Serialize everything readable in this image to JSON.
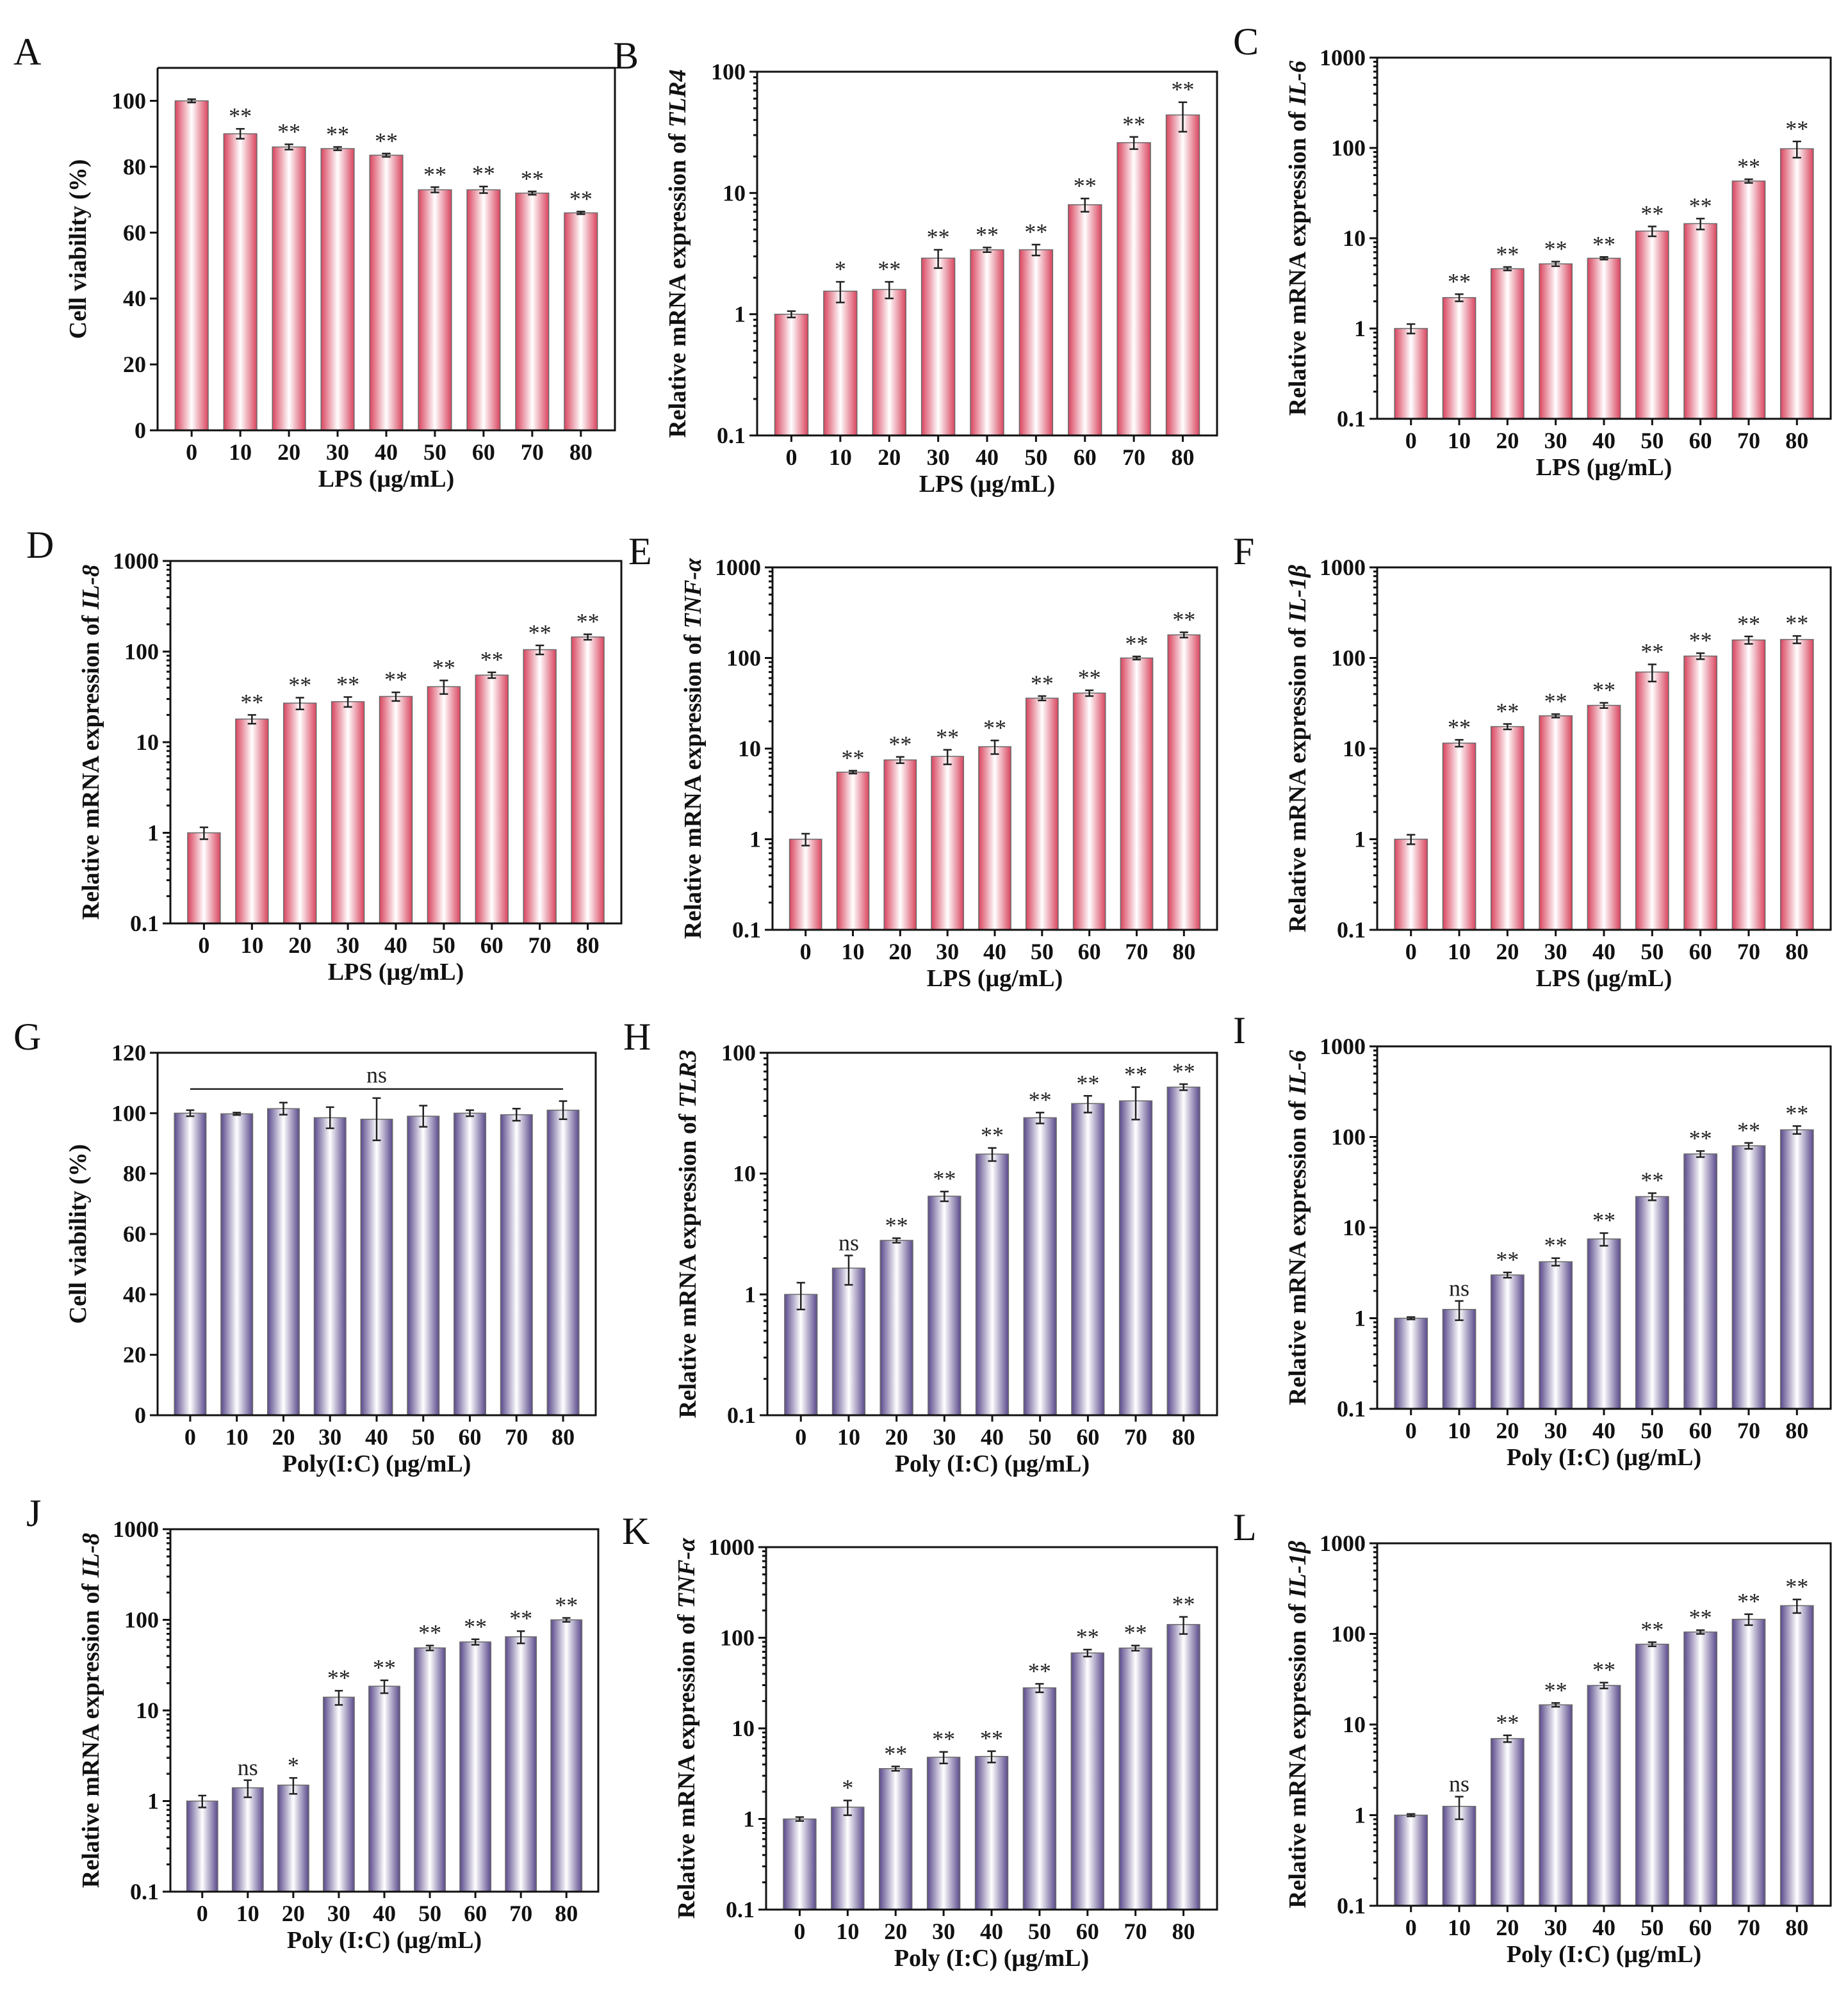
{
  "figure": {
    "colors": {
      "lps_bar": "#d9455f",
      "polyic_bar": "#5b4a8c",
      "bar_light": "#ffffff"
    }
  },
  "chart_data": [
    {
      "panel": "A",
      "type": "bar",
      "yscale": "linear",
      "ylim": [
        0,
        110
      ],
      "yticks": [
        0,
        20,
        40,
        60,
        80,
        100
      ],
      "color_key": "lps_bar",
      "xlabel": "LPS (μg/mL)",
      "ylabel": [
        {
          "t": "Cell viability (%)",
          "i": false
        }
      ],
      "categories": [
        "0",
        "10",
        "20",
        "30",
        "40",
        "50",
        "60",
        "70",
        "80"
      ],
      "values": [
        100,
        90,
        86,
        85.5,
        83.5,
        73,
        73,
        72,
        66
      ],
      "errors": [
        0.5,
        1.5,
        0.8,
        0.5,
        0.5,
        0.8,
        1,
        0.5,
        0.4
      ],
      "sig": [
        "",
        "**",
        "**",
        "**",
        "**",
        "**",
        "**",
        "**",
        "**"
      ]
    },
    {
      "panel": "B",
      "type": "bar",
      "yscale": "log",
      "ylim": [
        0.1,
        100
      ],
      "yticks": [
        0.1,
        1,
        10,
        100
      ],
      "color_key": "lps_bar",
      "xlabel": "LPS (μg/mL)",
      "ylabel": [
        {
          "t": "Relative mRNA expression of ",
          "i": false
        },
        {
          "t": "TLR4",
          "i": true
        }
      ],
      "categories": [
        "0",
        "10",
        "20",
        "30",
        "40",
        "50",
        "60",
        "70",
        "80"
      ],
      "values": [
        1,
        1.55,
        1.6,
        2.9,
        3.4,
        3.4,
        8,
        26,
        44
      ],
      "errors": [
        0.06,
        0.3,
        0.25,
        0.5,
        0.15,
        0.35,
        1,
        3,
        12
      ],
      "sig": [
        "",
        "*",
        "**",
        "**",
        "**",
        "**",
        "**",
        "**",
        "**"
      ]
    },
    {
      "panel": "C",
      "type": "bar",
      "yscale": "log",
      "ylim": [
        0.1,
        1000
      ],
      "yticks": [
        0.1,
        1,
        10,
        100,
        1000
      ],
      "color_key": "lps_bar",
      "xlabel": "LPS (μg/mL)",
      "ylabel": [
        {
          "t": "Relative mRNA expression of ",
          "i": false
        },
        {
          "t": "IL-6",
          "i": true
        }
      ],
      "categories": [
        "0",
        "10",
        "20",
        "30",
        "40",
        "50",
        "60",
        "70",
        "80"
      ],
      "values": [
        1,
        2.2,
        4.6,
        5.2,
        6,
        12,
        14.5,
        43,
        98
      ],
      "errors": [
        0.12,
        0.2,
        0.2,
        0.3,
        0.2,
        1.5,
        2,
        2,
        20
      ],
      "sig": [
        "",
        "**",
        "**",
        "**",
        "**",
        "**",
        "**",
        "**",
        "**"
      ]
    },
    {
      "panel": "D",
      "type": "bar",
      "yscale": "log",
      "ylim": [
        0.1,
        1000
      ],
      "yticks": [
        0.1,
        1,
        10,
        100,
        1000
      ],
      "color_key": "lps_bar",
      "xlabel": "LPS (μg/mL)",
      "ylabel": [
        {
          "t": "Relative mRNA expression of ",
          "i": false
        },
        {
          "t": "IL-8",
          "i": true
        }
      ],
      "categories": [
        "0",
        "10",
        "20",
        "30",
        "40",
        "50",
        "60",
        "70",
        "80"
      ],
      "values": [
        1,
        18,
        27,
        28,
        32,
        41,
        55,
        105,
        145
      ],
      "errors": [
        0.15,
        2,
        4,
        3.5,
        3.5,
        7,
        4,
        12,
        10
      ],
      "sig": [
        "",
        "**",
        "**",
        "**",
        "**",
        "**",
        "**",
        "**",
        "**"
      ]
    },
    {
      "panel": "E",
      "type": "bar",
      "yscale": "log",
      "ylim": [
        0.1,
        1000
      ],
      "yticks": [
        0.1,
        1,
        10,
        100,
        1000
      ],
      "color_key": "lps_bar",
      "xlabel": "LPS (μg/mL)",
      "ylabel": [
        {
          "t": "Relative mRNA expression of ",
          "i": false
        },
        {
          "t": "TNF-α",
          "i": true
        }
      ],
      "categories": [
        "0",
        "10",
        "20",
        "30",
        "40",
        "50",
        "60",
        "70",
        "80"
      ],
      "values": [
        1,
        5.5,
        7.5,
        8.2,
        10.5,
        36,
        41,
        100,
        180
      ],
      "errors": [
        0.15,
        0.2,
        0.6,
        1.5,
        1.8,
        2,
        3,
        4,
        12
      ],
      "sig": [
        "",
        "**",
        "**",
        "**",
        "**",
        "**",
        "**",
        "**",
        "**"
      ]
    },
    {
      "panel": "F",
      "type": "bar",
      "yscale": "log",
      "ylim": [
        0.1,
        1000
      ],
      "yticks": [
        0.1,
        1,
        10,
        100,
        1000
      ],
      "color_key": "lps_bar",
      "xlabel": "LPS (μg/mL)",
      "ylabel": [
        {
          "t": "Relative mRNA expression of ",
          "i": false
        },
        {
          "t": "IL-1β",
          "i": true
        }
      ],
      "categories": [
        "0",
        "10",
        "20",
        "30",
        "40",
        "50",
        "60",
        "70",
        "80"
      ],
      "values": [
        1,
        11.5,
        17.5,
        23,
        30,
        70,
        105,
        158,
        160
      ],
      "errors": [
        0.12,
        1,
        1.2,
        1,
        2,
        15,
        8,
        15,
        15
      ],
      "sig": [
        "",
        "**",
        "**",
        "**",
        "**",
        "**",
        "**",
        "**",
        "**"
      ]
    },
    {
      "panel": "G",
      "type": "bar",
      "yscale": "linear",
      "ylim": [
        0,
        120
      ],
      "yticks": [
        0,
        20,
        40,
        60,
        80,
        100,
        120
      ],
      "color_key": "polyic_bar",
      "xlabel": "Poly(I:C) (μg/mL)",
      "ylabel": [
        {
          "t": "Cell viability (%)",
          "i": false
        }
      ],
      "categories": [
        "0",
        "10",
        "20",
        "30",
        "40",
        "50",
        "60",
        "70",
        "80"
      ],
      "values": [
        100,
        99.8,
        101.5,
        98.5,
        98,
        99,
        100,
        99.5,
        101
      ],
      "errors": [
        1,
        0.4,
        2,
        3.5,
        7,
        3.5,
        1,
        2,
        3
      ],
      "sig": [
        "",
        "",
        "",
        "",
        "",
        "",
        "",
        "",
        ""
      ],
      "bracket": {
        "label": "ns",
        "from": 0,
        "to": 8,
        "value": 108
      }
    },
    {
      "panel": "H",
      "type": "bar",
      "yscale": "log",
      "ylim": [
        0.1,
        100
      ],
      "yticks": [
        0.1,
        1,
        10,
        100
      ],
      "color_key": "polyic_bar",
      "xlabel": "Poly (I:C) (μg/mL)",
      "ylabel": [
        {
          "t": "Relative mRNA expression of ",
          "i": false
        },
        {
          "t": "TLR3",
          "i": true
        }
      ],
      "categories": [
        "0",
        "10",
        "20",
        "30",
        "40",
        "50",
        "60",
        "70",
        "80"
      ],
      "values": [
        1,
        1.65,
        2.8,
        6.5,
        14.5,
        29,
        38,
        40,
        52
      ],
      "errors": [
        0.25,
        0.45,
        0.12,
        0.6,
        1.8,
        3,
        6,
        12,
        3
      ],
      "sig": [
        "",
        "ns",
        "**",
        "**",
        "**",
        "**",
        "**",
        "**",
        "**"
      ]
    },
    {
      "panel": "I",
      "type": "bar",
      "yscale": "log",
      "ylim": [
        0.1,
        1000
      ],
      "yticks": [
        0.1,
        1,
        10,
        100,
        1000
      ],
      "color_key": "polyic_bar",
      "xlabel": "Poly (I:C) (μg/mL)",
      "ylabel": [
        {
          "t": "Relative mRNA expression of ",
          "i": false
        },
        {
          "t": "IL-6",
          "i": true
        }
      ],
      "categories": [
        "0",
        "10",
        "20",
        "30",
        "40",
        "50",
        "60",
        "70",
        "80"
      ],
      "values": [
        1,
        1.25,
        3,
        4.2,
        7.5,
        22,
        65,
        80,
        120
      ],
      "errors": [
        0.03,
        0.3,
        0.2,
        0.4,
        1.2,
        2,
        5,
        6,
        12
      ],
      "sig": [
        "",
        "ns",
        "**",
        "**",
        "**",
        "**",
        "**",
        "**",
        "**"
      ]
    },
    {
      "panel": "J",
      "type": "bar",
      "yscale": "log",
      "ylim": [
        0.1,
        1000
      ],
      "yticks": [
        0.1,
        1,
        10,
        100,
        1000
      ],
      "color_key": "polyic_bar",
      "xlabel": "Poly (I:C) (μg/mL)",
      "ylabel": [
        {
          "t": "Relative mRNA expression of ",
          "i": false
        },
        {
          "t": "IL-8",
          "i": true
        }
      ],
      "categories": [
        "0",
        "10",
        "20",
        "30",
        "40",
        "50",
        "60",
        "70",
        "80"
      ],
      "values": [
        1,
        1.4,
        1.5,
        14,
        18.5,
        49,
        57,
        65,
        100
      ],
      "errors": [
        0.15,
        0.3,
        0.3,
        2.5,
        3,
        3,
        4,
        10,
        5
      ],
      "sig": [
        "",
        "ns",
        "*",
        "**",
        "**",
        "**",
        "**",
        "**",
        "**"
      ]
    },
    {
      "panel": "K",
      "type": "bar",
      "yscale": "log",
      "ylim": [
        0.1,
        1000
      ],
      "yticks": [
        0.1,
        1,
        10,
        100,
        1000
      ],
      "color_key": "polyic_bar",
      "xlabel": "Poly (I:C) (μg/mL)",
      "ylabel": [
        {
          "t": "Relative mRNA expression of ",
          "i": false
        },
        {
          "t": "TNF-α",
          "i": true
        }
      ],
      "categories": [
        "0",
        "10",
        "20",
        "30",
        "40",
        "50",
        "60",
        "70",
        "80"
      ],
      "values": [
        1,
        1.35,
        3.6,
        4.8,
        4.9,
        28,
        68,
        77,
        140
      ],
      "errors": [
        0.05,
        0.25,
        0.2,
        0.7,
        0.7,
        3,
        6,
        5,
        30
      ],
      "sig": [
        "",
        "*",
        "**",
        "**",
        "**",
        "**",
        "**",
        "**",
        "**"
      ]
    },
    {
      "panel": "L",
      "type": "bar",
      "yscale": "log",
      "ylim": [
        0.1,
        1000
      ],
      "yticks": [
        0.1,
        1,
        10,
        100,
        1000
      ],
      "color_key": "polyic_bar",
      "xlabel": "Poly (I:C) (μg/mL)",
      "ylabel": [
        {
          "t": "Relative mRNA expression of ",
          "i": false
        },
        {
          "t": "IL-1β",
          "i": true
        }
      ],
      "categories": [
        "0",
        "10",
        "20",
        "30",
        "40",
        "50",
        "60",
        "70",
        "80"
      ],
      "values": [
        1,
        1.25,
        7,
        16.5,
        27,
        77,
        105,
        145,
        205
      ],
      "errors": [
        0.03,
        0.35,
        0.6,
        0.8,
        2,
        4,
        5,
        20,
        35
      ],
      "sig": [
        "",
        "ns",
        "**",
        "**",
        "**",
        "**",
        "**",
        "**",
        "**"
      ]
    }
  ]
}
